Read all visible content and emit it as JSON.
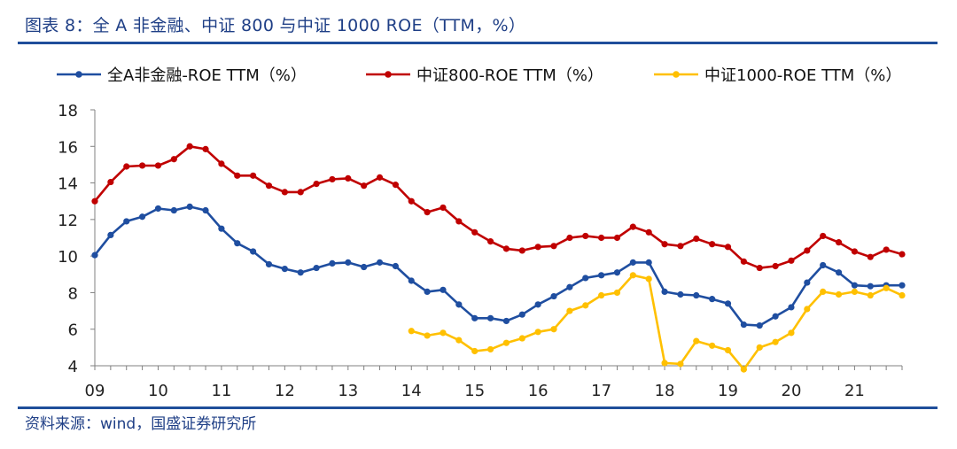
{
  "header": {
    "title": "图表 8：全 A 非金融、中证 800 与中证 1000 ROE（TTM，%）"
  },
  "footer": {
    "source": "资料来源：wind，国盛证券研究所"
  },
  "chart_data": {
    "type": "line",
    "title": "图表 8：全 A 非金融、中证 800 与中证 1000 ROE（TTM，%）",
    "xlabel": "",
    "ylabel": "",
    "ylim": [
      4,
      18
    ],
    "yticks": [
      "18",
      "16",
      "14",
      "12",
      "10",
      "8",
      "6",
      "4"
    ],
    "xtick_labels": [
      "09",
      "10",
      "11",
      "12",
      "13",
      "14",
      "15",
      "16",
      "17",
      "18",
      "19",
      "20",
      "21"
    ],
    "legend_position": "top",
    "grid": false,
    "x": [
      2009.0,
      2009.25,
      2009.5,
      2009.75,
      2010.0,
      2010.25,
      2010.5,
      2010.75,
      2011.0,
      2011.25,
      2011.5,
      2011.75,
      2012.0,
      2012.25,
      2012.5,
      2012.75,
      2013.0,
      2013.25,
      2013.5,
      2013.75,
      2014.0,
      2014.25,
      2014.5,
      2014.75,
      2015.0,
      2015.25,
      2015.5,
      2015.75,
      2016.0,
      2016.25,
      2016.5,
      2016.75,
      2017.0,
      2017.25,
      2017.5,
      2017.75,
      2018.0,
      2018.25,
      2018.5,
      2018.75,
      2019.0,
      2019.25,
      2019.5,
      2019.75,
      2020.0,
      2020.25,
      2020.5,
      2020.75,
      2021.0,
      2021.25,
      2021.5,
      2021.75
    ],
    "series": [
      {
        "name": "全A非金融-ROE TTM（%）",
        "color": "#1f4ea0",
        "values": [
          10.05,
          11.15,
          11.9,
          12.15,
          12.6,
          12.5,
          12.7,
          12.5,
          11.5,
          10.7,
          10.25,
          9.55,
          9.3,
          9.1,
          9.35,
          9.6,
          9.65,
          9.4,
          9.65,
          9.45,
          8.65,
          8.05,
          8.15,
          7.35,
          6.6,
          6.6,
          6.45,
          6.8,
          7.35,
          7.8,
          8.3,
          8.8,
          8.95,
          9.1,
          9.65,
          9.65,
          8.05,
          7.9,
          7.85,
          7.65,
          7.4,
          6.25,
          6.2,
          6.7,
          7.2,
          8.55,
          9.5,
          9.1,
          8.4,
          8.35,
          8.4,
          8.4
        ]
      },
      {
        "name": "中证800-ROE TTM（%）",
        "color": "#c00000",
        "values": [
          13.0,
          14.05,
          14.9,
          14.95,
          14.95,
          15.3,
          16.0,
          15.85,
          15.05,
          14.4,
          14.4,
          13.85,
          13.5,
          13.5,
          13.95,
          14.2,
          14.25,
          13.85,
          14.3,
          13.9,
          13.0,
          12.4,
          12.65,
          11.9,
          11.3,
          10.8,
          10.4,
          10.3,
          10.5,
          10.55,
          11.0,
          11.1,
          11.0,
          11.0,
          11.6,
          11.3,
          10.65,
          10.55,
          10.95,
          10.65,
          10.5,
          9.7,
          9.35,
          9.45,
          9.75,
          10.3,
          11.1,
          10.75,
          10.25,
          9.95,
          10.35,
          10.1
        ]
      },
      {
        "name": "中证1000-ROE TTM（%）",
        "color": "#ffc000",
        "values": [
          null,
          null,
          null,
          null,
          null,
          null,
          null,
          null,
          null,
          null,
          null,
          null,
          null,
          null,
          null,
          null,
          null,
          null,
          null,
          null,
          5.9,
          5.65,
          5.8,
          5.4,
          4.8,
          4.9,
          5.25,
          5.5,
          5.85,
          6.0,
          7.0,
          7.3,
          7.85,
          8.0,
          8.95,
          8.75,
          4.15,
          4.1,
          5.35,
          5.1,
          4.85,
          3.8,
          5.0,
          5.3,
          5.8,
          7.1,
          8.05,
          7.9,
          8.05,
          7.85,
          8.25,
          7.85
        ]
      }
    ]
  }
}
